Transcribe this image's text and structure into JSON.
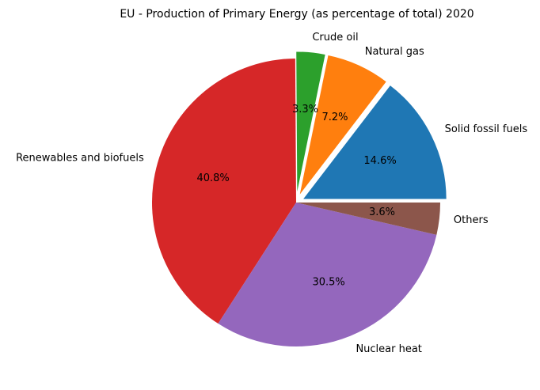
{
  "chart_data": {
    "type": "pie",
    "title": "EU - Production of Primary Energy (as percentage of total) 2020",
    "start_angle_deg": 0,
    "direction": "counterclockwise",
    "slices": [
      {
        "label": "Solid fossil fuels",
        "value": 14.6,
        "pct_label": "14.6%",
        "color": "#1f77b4",
        "exploded": true
      },
      {
        "label": "Natural gas",
        "value": 7.2,
        "pct_label": "7.2%",
        "color": "#ff7f0e",
        "exploded": true
      },
      {
        "label": "Crude oil",
        "value": 3.3,
        "pct_label": "3.3%",
        "color": "#2ca02c",
        "exploded": true
      },
      {
        "label": "Renewables and biofuels",
        "value": 40.8,
        "pct_label": "40.8%",
        "color": "#d62728",
        "exploded": false
      },
      {
        "label": "Nuclear heat",
        "value": 30.5,
        "pct_label": "30.5%",
        "color": "#9467bd",
        "exploded": false
      },
      {
        "label": "Others",
        "value": 3.6,
        "pct_label": "3.6%",
        "color": "#8c564b",
        "exploded": false
      }
    ]
  }
}
